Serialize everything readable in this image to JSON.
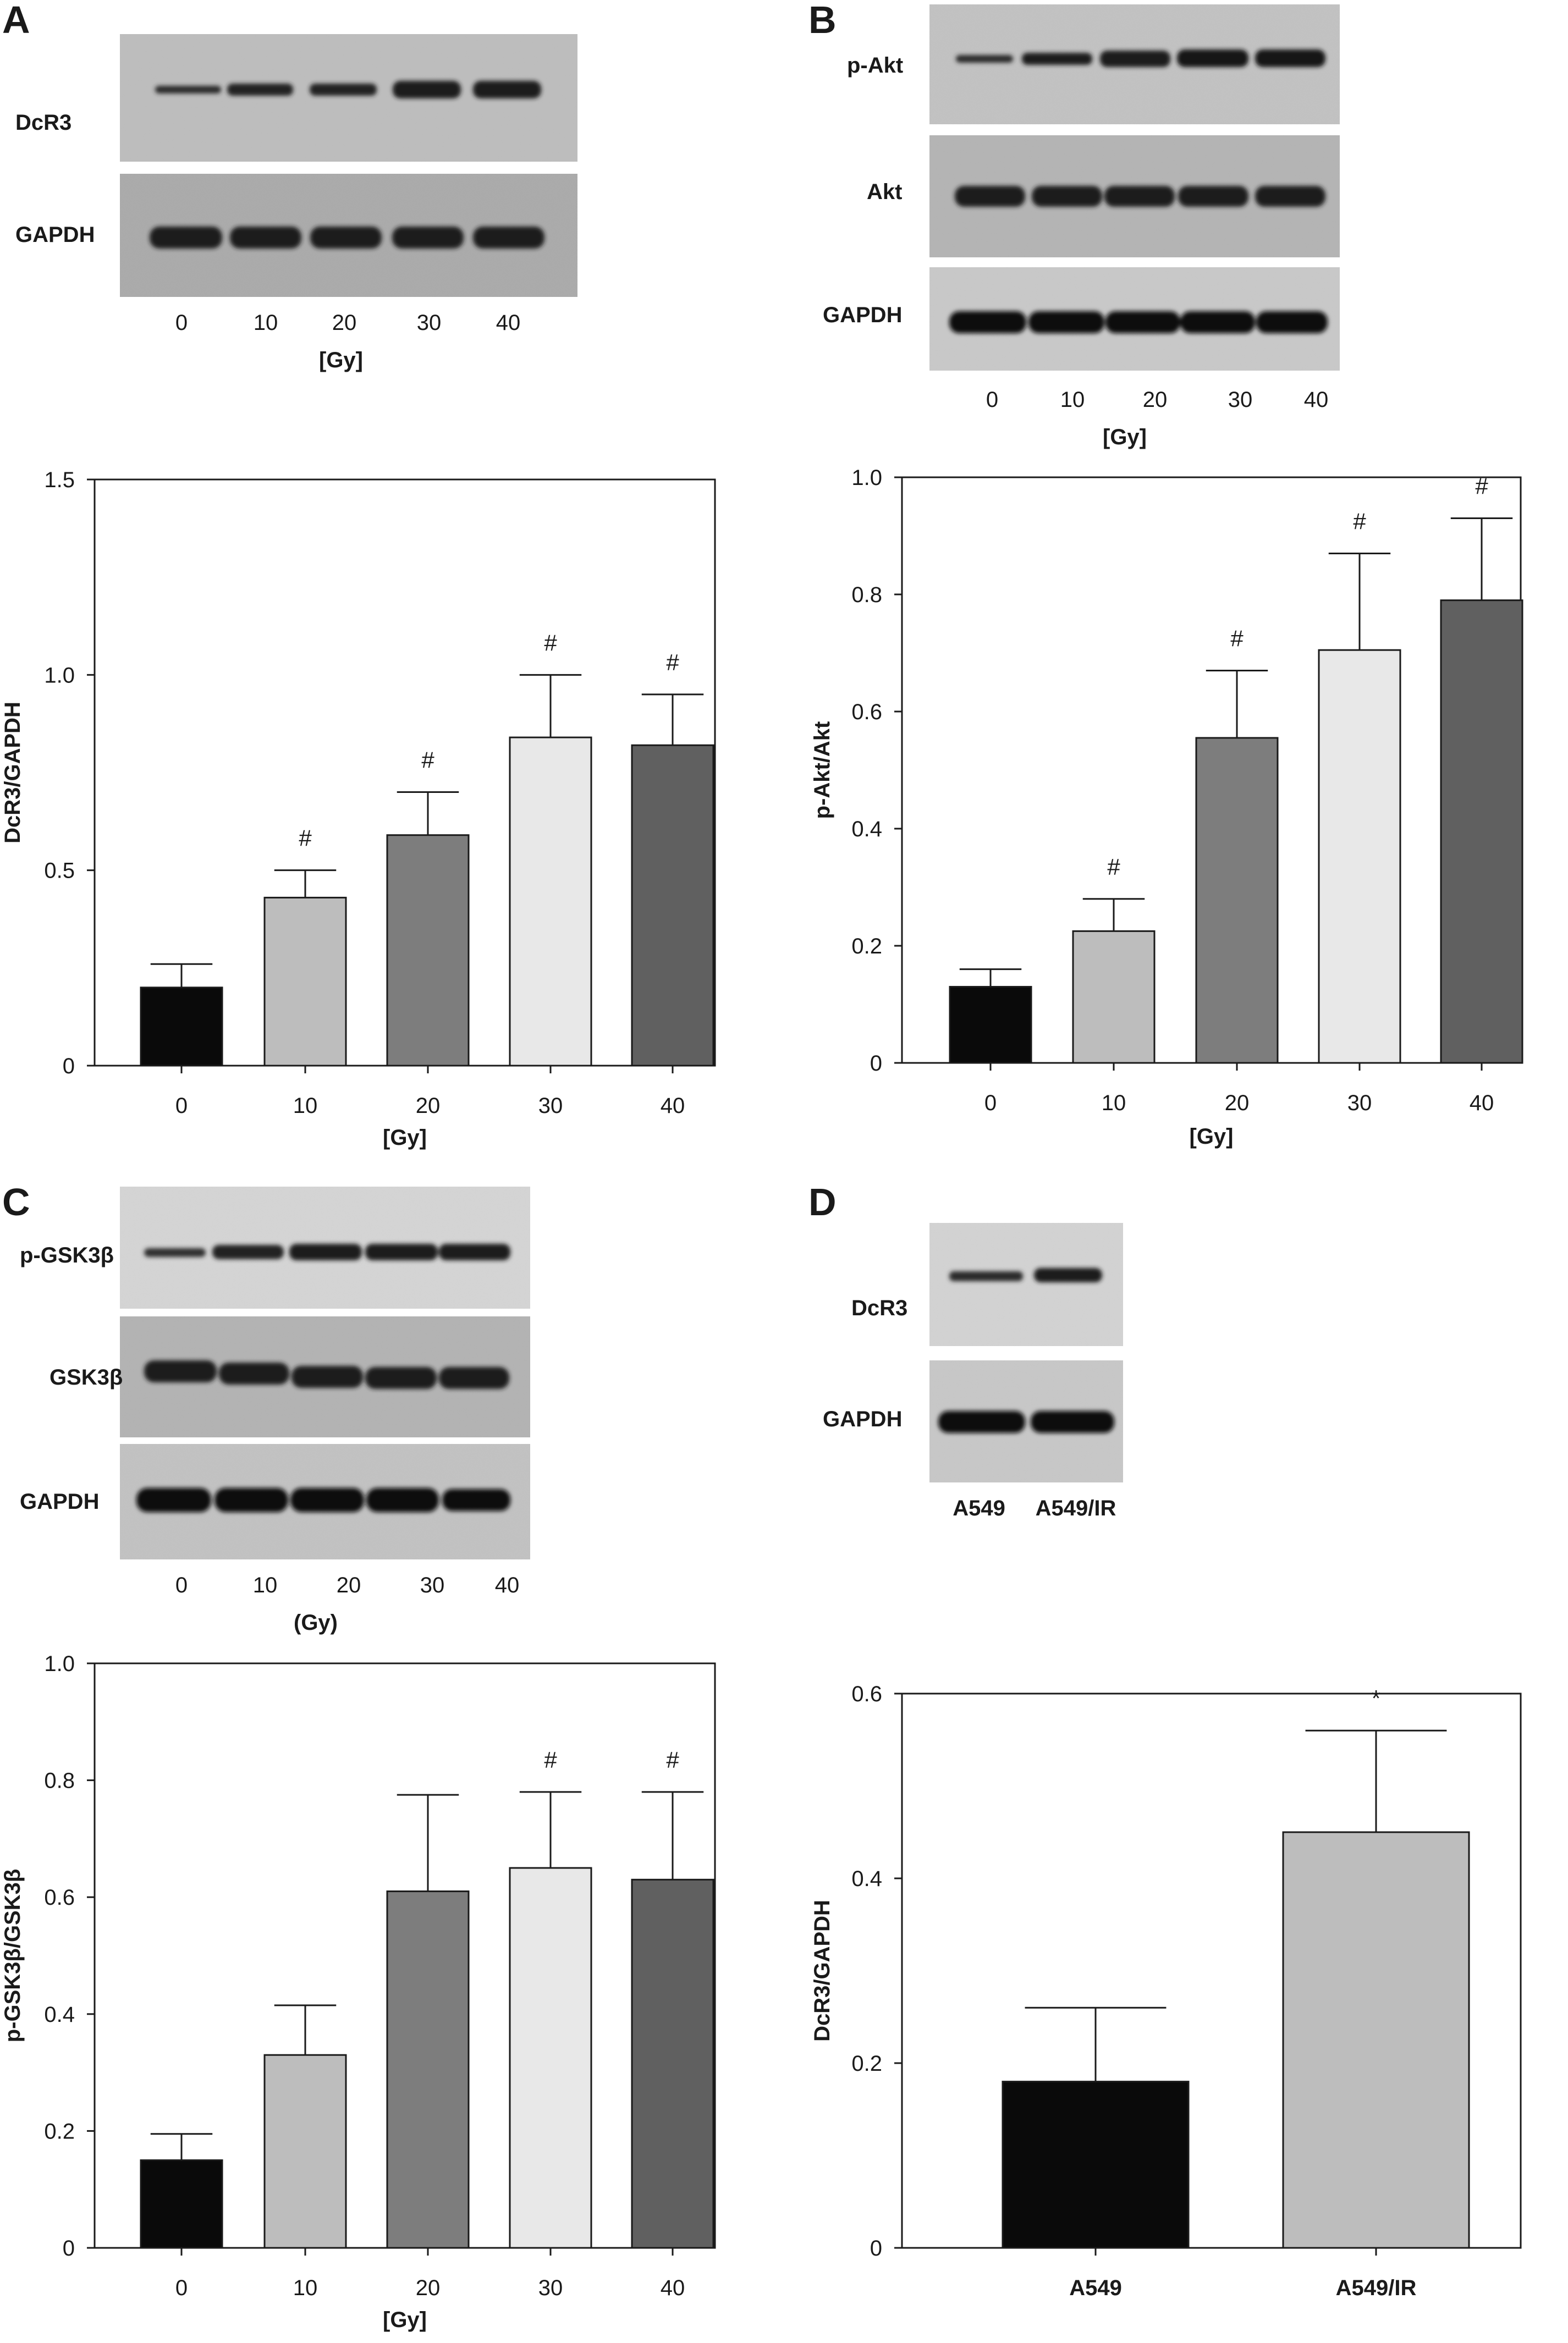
{
  "colors": {
    "black": "#0a0a0a",
    "light_gray": "#bdbdbd",
    "mid_gray": "#7d7d7d",
    "very_light_gray": "#e8e8e8",
    "dark_gray": "#606060"
  },
  "blots": [
    {
      "panel": "A",
      "rows": [
        "DcR3",
        "GAPDH"
      ],
      "lanes": [
        "0",
        "10",
        "20",
        "30",
        "40"
      ],
      "xlabel": "[Gy]"
    },
    {
      "panel": "B",
      "rows": [
        "p-Akt",
        "Akt",
        "GAPDH"
      ],
      "lanes": [
        "0",
        "10",
        "20",
        "30",
        "40"
      ],
      "xlabel": "[Gy]"
    },
    {
      "panel": "C",
      "rows": [
        "p-GSK3β",
        "GSK3β",
        "GAPDH"
      ],
      "lanes": [
        "0",
        "10",
        "20",
        "30",
        "40"
      ],
      "xlabel": "(Gy)"
    },
    {
      "panel": "D",
      "rows": [
        "DcR3",
        "GAPDH"
      ],
      "lanes": [
        "A549",
        "A549/IR"
      ],
      "xlabel": ""
    }
  ],
  "chart_data": [
    {
      "panel": "A",
      "type": "bar",
      "categories": [
        "0",
        "10",
        "20",
        "30",
        "40"
      ],
      "values": [
        0.2,
        0.43,
        0.59,
        0.84,
        0.82
      ],
      "errors": [
        0.06,
        0.07,
        0.11,
        0.16,
        0.13
      ],
      "annotations": [
        "",
        "#",
        "#",
        "#",
        "#"
      ],
      "bar_colors": [
        "#0a0a0a",
        "#bdbdbd",
        "#7d7d7d",
        "#e8e8e8",
        "#606060"
      ],
      "xlabel": "[Gy]",
      "ylabel": "DcR3/GAPDH",
      "ylim": [
        0,
        1.5
      ],
      "yticks": [
        "0",
        "0.5",
        "1.0",
        "1.5"
      ],
      "grid": false
    },
    {
      "panel": "B",
      "type": "bar",
      "categories": [
        "0",
        "10",
        "20",
        "30",
        "40"
      ],
      "values": [
        0.13,
        0.225,
        0.555,
        0.705,
        0.79
      ],
      "errors": [
        0.03,
        0.055,
        0.115,
        0.165,
        0.14
      ],
      "annotations": [
        "",
        "#",
        "#",
        "#",
        "#"
      ],
      "bar_colors": [
        "#0a0a0a",
        "#bdbdbd",
        "#7d7d7d",
        "#e8e8e8",
        "#606060"
      ],
      "xlabel": "[Gy]",
      "ylabel": "p-Akt/Akt",
      "ylim": [
        0,
        1.0
      ],
      "yticks": [
        "0",
        "0.2",
        "0.4",
        "0.6",
        "0.8",
        "1.0"
      ],
      "grid": false
    },
    {
      "panel": "C",
      "type": "bar",
      "categories": [
        "0",
        "10",
        "20",
        "30",
        "40"
      ],
      "values": [
        0.15,
        0.33,
        0.61,
        0.65,
        0.63
      ],
      "errors": [
        0.045,
        0.085,
        0.165,
        0.13,
        0.15
      ],
      "annotations": [
        "",
        "",
        "",
        "#",
        "#"
      ],
      "bar_colors": [
        "#0a0a0a",
        "#bdbdbd",
        "#7d7d7d",
        "#e8e8e8",
        "#606060"
      ],
      "xlabel": "[Gy]",
      "ylabel": "p-GSK3β/GSK3β",
      "ylim": [
        0,
        1.0
      ],
      "yticks": [
        "0",
        "0.2",
        "0.4",
        "0.6",
        "0.8",
        "1.0"
      ],
      "grid": false
    },
    {
      "panel": "D",
      "type": "bar",
      "categories": [
        "A549",
        "A549/IR"
      ],
      "values": [
        0.18,
        0.45
      ],
      "errors": [
        0.08,
        0.11
      ],
      "annotations": [
        "",
        "*"
      ],
      "bar_colors": [
        "#0a0a0a",
        "#bdbdbd"
      ],
      "xlabel": "",
      "ylabel": "DcR3/GAPDH",
      "ylim": [
        0,
        0.6
      ],
      "yticks": [
        "0",
        "0.2",
        "0.4",
        "0.6"
      ],
      "grid": false
    }
  ]
}
